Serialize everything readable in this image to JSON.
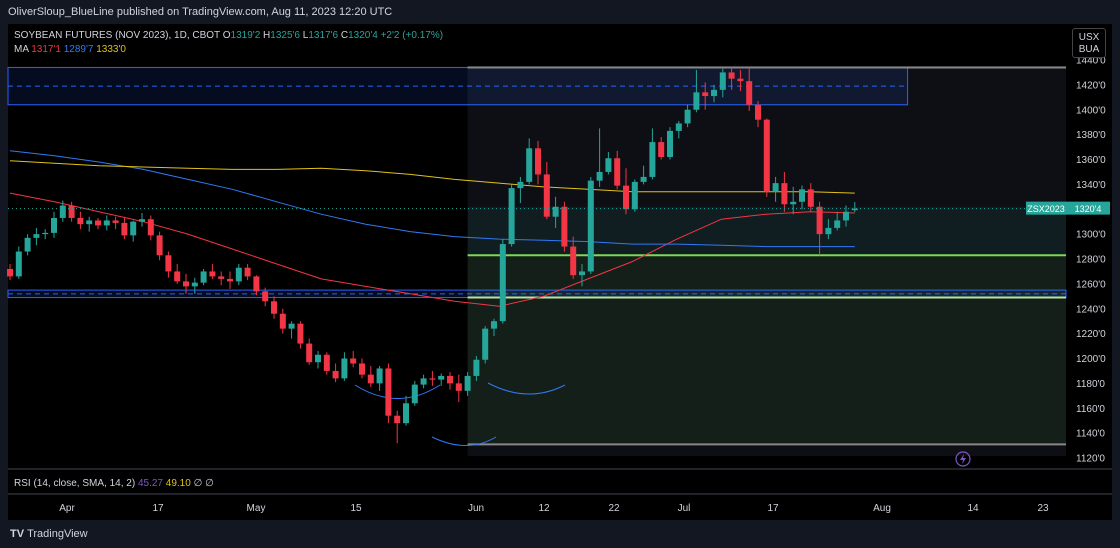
{
  "header": {
    "attribution": "OliverSloup_BlueLine published on TradingView.com, Aug 11, 2023 12:20 UTC"
  },
  "legend": {
    "symbol": "SOYBEAN FUTURES (NOV 2023), 1D, CBOT",
    "o_label": "O",
    "o_value": "1319'2",
    "h_label": "H",
    "h_value": "1325'6",
    "l_label": "L",
    "l_value": "1317'6",
    "c_label": "C",
    "c_value": "1320'4",
    "change": "+2'2 (+0.17%)",
    "ma_label": "MA",
    "ma1": "1317'1",
    "ma2": "1289'7",
    "ma3": "1333'0"
  },
  "currency_badge": {
    "line1": "USX",
    "line2": "BUA"
  },
  "price_tag": {
    "symbol": "ZSX2023",
    "value": "1320'4"
  },
  "rsi": {
    "label": "RSI (14, close, SMA, 14, 2)",
    "value1": "45.27",
    "value2": "49.10",
    "value3": "∅",
    "value4": "∅"
  },
  "footer": {
    "brand": "TradingView"
  },
  "colors": {
    "up": "#26a69a",
    "down": "#f23645",
    "ma_red": "#f23645",
    "ma_blue": "#3179f5",
    "ma_yellow": "#e0c21a",
    "zone_blue": "#2962ff",
    "zone_green": "#4caf50",
    "price_line": "#26a69a"
  },
  "chart_data": {
    "type": "candlestick",
    "title": "SOYBEAN FUTURES (NOV 2023), 1D, CBOT",
    "ylim": [
      1120,
      1440
    ],
    "y_ticks": [
      "1440'0",
      "1420'0",
      "1400'0",
      "1380'0",
      "1360'0",
      "1340'0",
      "1320'0",
      "1300'0",
      "1280'0",
      "1260'0",
      "1240'0",
      "1220'0",
      "1200'0",
      "1180'0",
      "1160'0",
      "1140'0",
      "1120'0"
    ],
    "x_labels": [
      "Apr",
      "17",
      "May",
      "15",
      "Jun",
      "12",
      "22",
      "Jul",
      "17",
      "Aug",
      "14",
      "23"
    ],
    "candles": [
      {
        "o": 1272,
        "h": 1276,
        "l": 1263,
        "c": 1266
      },
      {
        "o": 1266,
        "h": 1290,
        "l": 1264,
        "c": 1286
      },
      {
        "o": 1286,
        "h": 1300,
        "l": 1283,
        "c": 1297
      },
      {
        "o": 1297,
        "h": 1305,
        "l": 1291,
        "c": 1300
      },
      {
        "o": 1300,
        "h": 1304,
        "l": 1296,
        "c": 1301
      },
      {
        "o": 1301,
        "h": 1318,
        "l": 1297,
        "c": 1313
      },
      {
        "o": 1313,
        "h": 1327,
        "l": 1310,
        "c": 1323
      },
      {
        "o": 1323,
        "h": 1326,
        "l": 1310,
        "c": 1313
      },
      {
        "o": 1313,
        "h": 1318,
        "l": 1304,
        "c": 1308
      },
      {
        "o": 1308,
        "h": 1314,
        "l": 1302,
        "c": 1311
      },
      {
        "o": 1311,
        "h": 1313,
        "l": 1304,
        "c": 1307
      },
      {
        "o": 1307,
        "h": 1315,
        "l": 1303,
        "c": 1311
      },
      {
        "o": 1311,
        "h": 1314,
        "l": 1304,
        "c": 1309
      },
      {
        "o": 1309,
        "h": 1314,
        "l": 1296,
        "c": 1299
      },
      {
        "o": 1299,
        "h": 1311,
        "l": 1294,
        "c": 1310
      },
      {
        "o": 1310,
        "h": 1317,
        "l": 1306,
        "c": 1312
      },
      {
        "o": 1312,
        "h": 1315,
        "l": 1295,
        "c": 1299
      },
      {
        "o": 1299,
        "h": 1302,
        "l": 1279,
        "c": 1283
      },
      {
        "o": 1283,
        "h": 1286,
        "l": 1265,
        "c": 1270
      },
      {
        "o": 1270,
        "h": 1276,
        "l": 1260,
        "c": 1262
      },
      {
        "o": 1262,
        "h": 1268,
        "l": 1252,
        "c": 1258
      },
      {
        "o": 1258,
        "h": 1265,
        "l": 1252,
        "c": 1261
      },
      {
        "o": 1261,
        "h": 1272,
        "l": 1259,
        "c": 1270
      },
      {
        "o": 1270,
        "h": 1276,
        "l": 1264,
        "c": 1266
      },
      {
        "o": 1266,
        "h": 1270,
        "l": 1259,
        "c": 1264
      },
      {
        "o": 1264,
        "h": 1270,
        "l": 1256,
        "c": 1262
      },
      {
        "o": 1262,
        "h": 1276,
        "l": 1259,
        "c": 1273
      },
      {
        "o": 1273,
        "h": 1276,
        "l": 1263,
        "c": 1266
      },
      {
        "o": 1266,
        "h": 1267,
        "l": 1251,
        "c": 1254
      },
      {
        "o": 1254,
        "h": 1257,
        "l": 1242,
        "c": 1246
      },
      {
        "o": 1246,
        "h": 1250,
        "l": 1232,
        "c": 1236
      },
      {
        "o": 1236,
        "h": 1240,
        "l": 1220,
        "c": 1224
      },
      {
        "o": 1224,
        "h": 1230,
        "l": 1216,
        "c": 1228
      },
      {
        "o": 1228,
        "h": 1230,
        "l": 1208,
        "c": 1212
      },
      {
        "o": 1212,
        "h": 1216,
        "l": 1195,
        "c": 1197
      },
      {
        "o": 1197,
        "h": 1206,
        "l": 1192,
        "c": 1203
      },
      {
        "o": 1203,
        "h": 1205,
        "l": 1187,
        "c": 1190
      },
      {
        "o": 1190,
        "h": 1196,
        "l": 1181,
        "c": 1184
      },
      {
        "o": 1184,
        "h": 1205,
        "l": 1182,
        "c": 1200
      },
      {
        "o": 1200,
        "h": 1206,
        "l": 1193,
        "c": 1196
      },
      {
        "o": 1196,
        "h": 1200,
        "l": 1184,
        "c": 1187
      },
      {
        "o": 1187,
        "h": 1194,
        "l": 1177,
        "c": 1180
      },
      {
        "o": 1180,
        "h": 1194,
        "l": 1174,
        "c": 1192
      },
      {
        "o": 1192,
        "h": 1196,
        "l": 1148,
        "c": 1154
      },
      {
        "o": 1154,
        "h": 1158,
        "l": 1132,
        "c": 1148
      },
      {
        "o": 1148,
        "h": 1170,
        "l": 1146,
        "c": 1164
      },
      {
        "o": 1164,
        "h": 1182,
        "l": 1162,
        "c": 1179
      },
      {
        "o": 1179,
        "h": 1187,
        "l": 1176,
        "c": 1184
      },
      {
        "o": 1184,
        "h": 1190,
        "l": 1178,
        "c": 1183
      },
      {
        "o": 1183,
        "h": 1188,
        "l": 1178,
        "c": 1186
      },
      {
        "o": 1186,
        "h": 1189,
        "l": 1175,
        "c": 1180
      },
      {
        "o": 1180,
        "h": 1187,
        "l": 1165,
        "c": 1174
      },
      {
        "o": 1174,
        "h": 1189,
        "l": 1170,
        "c": 1186
      },
      {
        "o": 1186,
        "h": 1202,
        "l": 1182,
        "c": 1199
      },
      {
        "o": 1199,
        "h": 1226,
        "l": 1196,
        "c": 1224
      },
      {
        "o": 1224,
        "h": 1232,
        "l": 1218,
        "c": 1230
      },
      {
        "o": 1230,
        "h": 1296,
        "l": 1228,
        "c": 1292
      },
      {
        "o": 1292,
        "h": 1340,
        "l": 1290,
        "c": 1337
      },
      {
        "o": 1337,
        "h": 1346,
        "l": 1325,
        "c": 1342
      },
      {
        "o": 1342,
        "h": 1377,
        "l": 1340,
        "c": 1369
      },
      {
        "o": 1369,
        "h": 1375,
        "l": 1340,
        "c": 1348
      },
      {
        "o": 1348,
        "h": 1358,
        "l": 1312,
        "c": 1314
      },
      {
        "o": 1314,
        "h": 1330,
        "l": 1305,
        "c": 1322
      },
      {
        "o": 1322,
        "h": 1326,
        "l": 1286,
        "c": 1290
      },
      {
        "o": 1290,
        "h": 1298,
        "l": 1264,
        "c": 1267
      },
      {
        "o": 1267,
        "h": 1276,
        "l": 1258,
        "c": 1270
      },
      {
        "o": 1270,
        "h": 1346,
        "l": 1268,
        "c": 1343
      },
      {
        "o": 1343,
        "h": 1385,
        "l": 1338,
        "c": 1350
      },
      {
        "o": 1350,
        "h": 1366,
        "l": 1348,
        "c": 1361
      },
      {
        "o": 1361,
        "h": 1367,
        "l": 1336,
        "c": 1339
      },
      {
        "o": 1339,
        "h": 1353,
        "l": 1316,
        "c": 1320
      },
      {
        "o": 1320,
        "h": 1344,
        "l": 1318,
        "c": 1342
      },
      {
        "o": 1342,
        "h": 1355,
        "l": 1340,
        "c": 1346
      },
      {
        "o": 1346,
        "h": 1385,
        "l": 1344,
        "c": 1374
      },
      {
        "o": 1374,
        "h": 1378,
        "l": 1360,
        "c": 1362
      },
      {
        "o": 1362,
        "h": 1386,
        "l": 1360,
        "c": 1383
      },
      {
        "o": 1383,
        "h": 1391,
        "l": 1377,
        "c": 1389
      },
      {
        "o": 1389,
        "h": 1404,
        "l": 1386,
        "c": 1400
      },
      {
        "o": 1400,
        "h": 1432,
        "l": 1398,
        "c": 1414
      },
      {
        "o": 1414,
        "h": 1422,
        "l": 1400,
        "c": 1411
      },
      {
        "o": 1411,
        "h": 1420,
        "l": 1406,
        "c": 1416
      },
      {
        "o": 1416,
        "h": 1433,
        "l": 1410,
        "c": 1430
      },
      {
        "o": 1430,
        "h": 1434,
        "l": 1416,
        "c": 1425
      },
      {
        "o": 1425,
        "h": 1432,
        "l": 1415,
        "c": 1423
      },
      {
        "o": 1423,
        "h": 1434,
        "l": 1399,
        "c": 1404
      },
      {
        "o": 1404,
        "h": 1407,
        "l": 1386,
        "c": 1392
      },
      {
        "o": 1392,
        "h": 1393,
        "l": 1330,
        "c": 1334
      },
      {
        "o": 1334,
        "h": 1346,
        "l": 1326,
        "c": 1341
      },
      {
        "o": 1341,
        "h": 1350,
        "l": 1318,
        "c": 1324
      },
      {
        "o": 1324,
        "h": 1338,
        "l": 1316,
        "c": 1326
      },
      {
        "o": 1326,
        "h": 1339,
        "l": 1320,
        "c": 1336
      },
      {
        "o": 1336,
        "h": 1341,
        "l": 1318,
        "c": 1322
      },
      {
        "o": 1322,
        "h": 1326,
        "l": 1283,
        "c": 1300
      },
      {
        "o": 1300,
        "h": 1312,
        "l": 1296,
        "c": 1305
      },
      {
        "o": 1305,
        "h": 1318,
        "l": 1303,
        "c": 1311
      },
      {
        "o": 1311,
        "h": 1323,
        "l": 1306,
        "c": 1318
      },
      {
        "o": 1319.25,
        "h": 1325.75,
        "l": 1317.75,
        "c": 1320.5
      }
    ],
    "series": [
      {
        "values": [
          1333,
          1326,
          1318,
          1310,
          1300,
          1288,
          1276,
          1264,
          1258,
          1252,
          1246,
          1242,
          1250,
          1264,
          1278,
          1296,
          1312,
          1316,
          1318,
          1317
        ]
      },
      {
        "values": [
          1367,
          1363,
          1358,
          1352,
          1344,
          1336,
          1326,
          1316,
          1308,
          1302,
          1298,
          1296,
          1295,
          1294,
          1292,
          1292,
          1291,
          1290,
          1290,
          1290
        ]
      },
      {
        "values": [
          1359,
          1357,
          1355,
          1354,
          1353,
          1352,
          1352,
          1353,
          1351,
          1348,
          1344,
          1341,
          1338,
          1336,
          1334,
          1334,
          1334,
          1334,
          1334,
          1333
        ]
      }
    ],
    "zones": [
      {
        "top": 1434,
        "bottom": 1404,
        "color": "blue"
      },
      {
        "top": 1255,
        "bottom": 1249,
        "color": "blue"
      },
      {
        "top": 1322,
        "bottom": 1283,
        "color": "teal"
      },
      {
        "top": 1283,
        "bottom": 1249,
        "color": "green"
      },
      {
        "top": 1249,
        "bottom": 1131,
        "color": "green"
      }
    ],
    "last_price": 1320.5,
    "rsi_values": [
      "45.27",
      "49.10"
    ]
  }
}
